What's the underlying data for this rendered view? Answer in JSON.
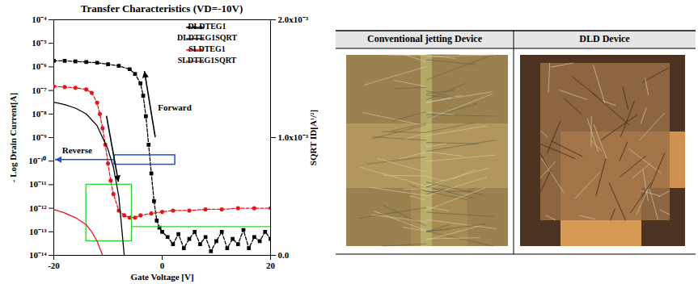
{
  "chart_data": {
    "type": "line",
    "title": "Transfer Characteristics (VD=-10V)",
    "x_label": "Gate Voltage [V]",
    "y_label": "- Log Drain Current[A]",
    "y2_label": "SQRT ID[A¹/²]",
    "log": "y",
    "grid": false,
    "legend": "upper right",
    "xlim": [
      -20,
      20
    ],
    "xticks": [
      -20,
      0,
      20
    ],
    "ylim": [
      1e-14,
      0.0001
    ],
    "yticks": [
      {
        "value": 1e-14,
        "label": "10⁻¹⁴"
      },
      {
        "value": 1e-13,
        "label": "10⁻¹³"
      },
      {
        "value": 1e-12,
        "label": "10⁻¹²"
      },
      {
        "value": 1e-11,
        "label": "10⁻¹¹"
      },
      {
        "value": 1e-10,
        "label": "10⁻¹⁰"
      },
      {
        "value": 1e-09,
        "label": "10⁻⁹"
      },
      {
        "value": 1e-08,
        "label": "10⁻⁸"
      },
      {
        "value": 1e-07,
        "label": "10⁻⁷"
      },
      {
        "value": 1e-06,
        "label": "10⁻⁶"
      },
      {
        "value": 1e-05,
        "label": "10⁻⁵"
      },
      {
        "value": 0.0001,
        "label": "10⁻⁴"
      }
    ],
    "y2lim": [
      0,
      0.002
    ],
    "y2ticks": [
      {
        "value": 0,
        "label": "0.0"
      },
      {
        "value": 0.001,
        "label": "1.0x10⁻³"
      },
      {
        "value": 0.002,
        "label": "2.0x10⁻³"
      }
    ],
    "annotations": [
      "Forward",
      "Reverse"
    ],
    "series": [
      {
        "name": "DLDTEG1",
        "color": "#000000",
        "line_style": "dashed",
        "marker": "square",
        "axis": "y",
        "x": [
          -20,
          -18,
          -16,
          -14,
          -12,
          -10,
          -8,
          -6,
          -5,
          -4,
          -3.5,
          -3,
          -2.5,
          -2,
          -1.5,
          -1,
          -0.5,
          0,
          1,
          2,
          3,
          4,
          5,
          6,
          7,
          8,
          9,
          10,
          11,
          12,
          13,
          14,
          15,
          16,
          17,
          18,
          19,
          20
        ],
        "values": [
          1.8e-06,
          1.8e-06,
          1.7e-06,
          1.6e-06,
          1.5e-06,
          1.3e-06,
          1.1e-06,
          8e-07,
          5e-07,
          2e-07,
          6e-08,
          8e-09,
          5e-10,
          3e-11,
          2e-12,
          3e-13,
          1.5e-13,
          1e-13,
          6e-14,
          3e-14,
          8e-14,
          2e-14,
          5e-14,
          1e-13,
          3e-14,
          6e-14,
          1.5e-14,
          4e-14,
          1e-13,
          2e-14,
          5e-14,
          3e-14,
          1.2e-13,
          2e-14,
          6e-14,
          4e-14,
          1e-13,
          5e-14
        ]
      },
      {
        "name": "DLDTEG1SQRT",
        "color": "#000000",
        "line_style": "solid",
        "marker": "none",
        "axis": "y2",
        "x": [
          -20,
          -18,
          -16,
          -14,
          -12,
          -10,
          -9,
          -8,
          -7.5,
          -7
        ],
        "values": [
          0.0013,
          0.00128,
          0.00125,
          0.0012,
          0.0011,
          0.0009,
          0.00075,
          0.0005,
          0.00025,
          0
        ]
      },
      {
        "name": "SLDTEG1",
        "color": "#e8141b",
        "line_style": "dashed",
        "marker": "circle",
        "axis": "y",
        "x": [
          -20,
          -18,
          -16,
          -14,
          -13,
          -12,
          -11.5,
          -11,
          -10.5,
          -10,
          -9.5,
          -9,
          -8,
          -7,
          -6,
          -5,
          -4,
          -2,
          0,
          2,
          5,
          8,
          11,
          14,
          17,
          20
        ],
        "values": [
          1.5e-07,
          1.4e-07,
          1.3e-07,
          1.1e-07,
          8e-08,
          3e-08,
          1e-08,
          2.5e-09,
          5e-10,
          8e-11,
          1.5e-11,
          4e-12,
          8e-13,
          5e-13,
          4e-13,
          4e-13,
          5e-13,
          6e-13,
          7e-13,
          8e-13,
          8e-13,
          9e-13,
          9e-13,
          1e-12,
          1e-12,
          1e-12
        ]
      },
      {
        "name": "SLDTEG1SQRT",
        "color": "#e8141b",
        "line_style": "solid",
        "marker": "none",
        "axis": "y2",
        "x": [
          -20,
          -18,
          -16,
          -14,
          -13,
          -12,
          -11.5,
          -11
        ],
        "values": [
          0.00039,
          0.00036,
          0.00032,
          0.00026,
          0.0002,
          0.00012,
          6e-05,
          0
        ]
      }
    ]
  },
  "table": {
    "headers": [
      "Conventional jetting Device",
      "DLD Device"
    ]
  }
}
